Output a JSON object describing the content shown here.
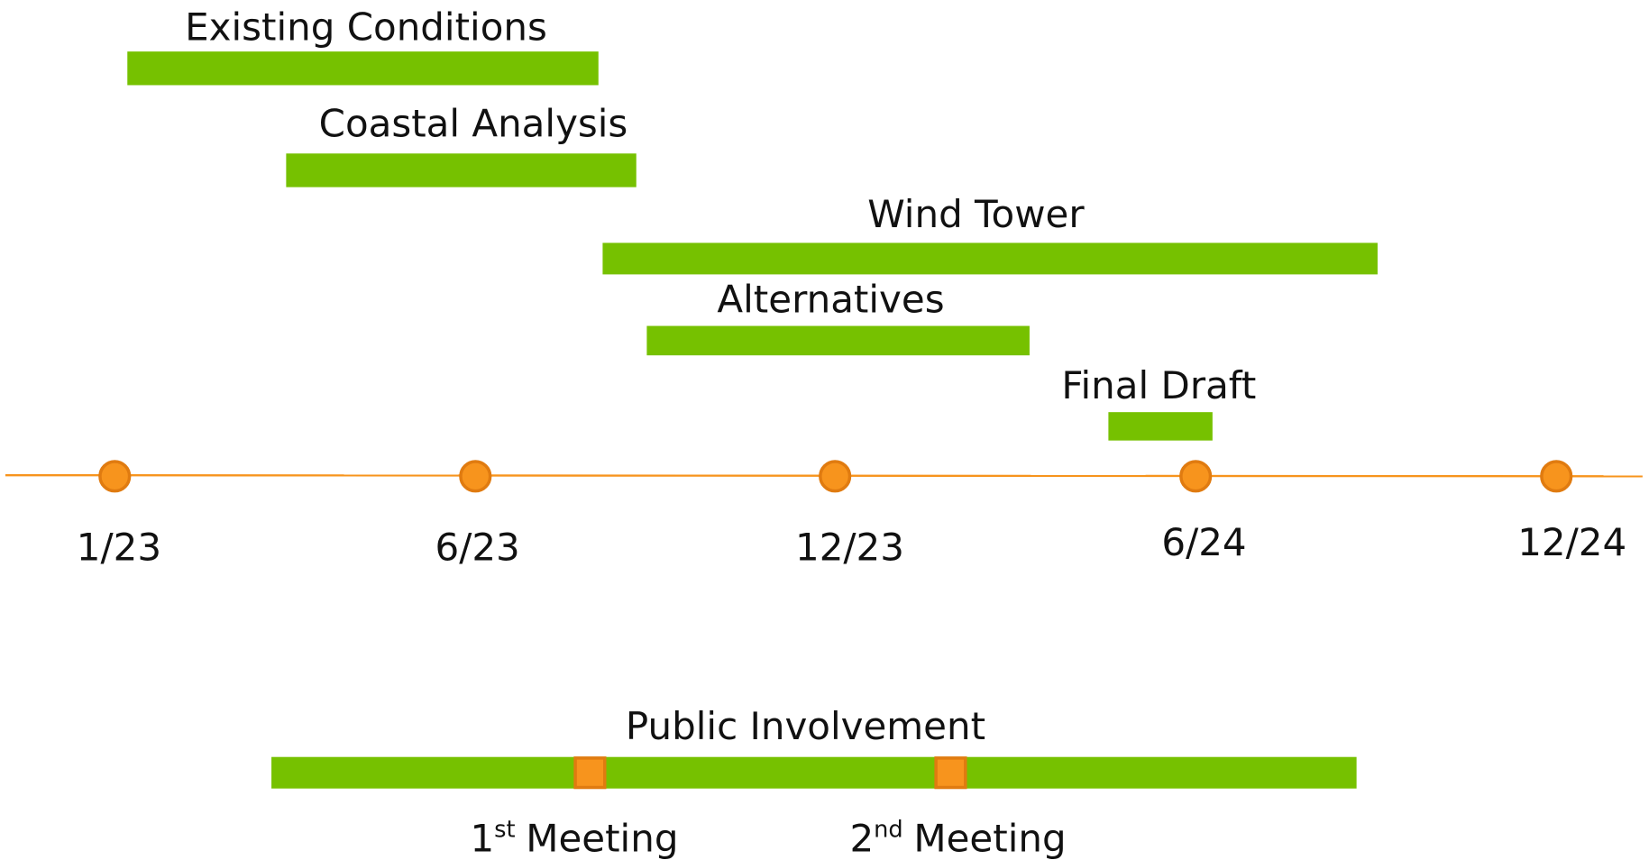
{
  "tasks": [
    {
      "label": "Existing Conditions"
    },
    {
      "label": "Coastal Analysis"
    },
    {
      "label": "Wind Tower"
    },
    {
      "label": "Alternatives"
    },
    {
      "label": "Final Draft"
    }
  ],
  "timeline": {
    "ticks": [
      "1/23",
      "6/23",
      "12/23",
      "6/24",
      "12/24"
    ]
  },
  "public_involvement": {
    "label": "Public Involvement",
    "meetings": [
      {
        "number": "1",
        "suffix": "st",
        "text": "Meeting"
      },
      {
        "number": "2",
        "suffix": "nd",
        "text": "Meeting"
      }
    ]
  }
}
